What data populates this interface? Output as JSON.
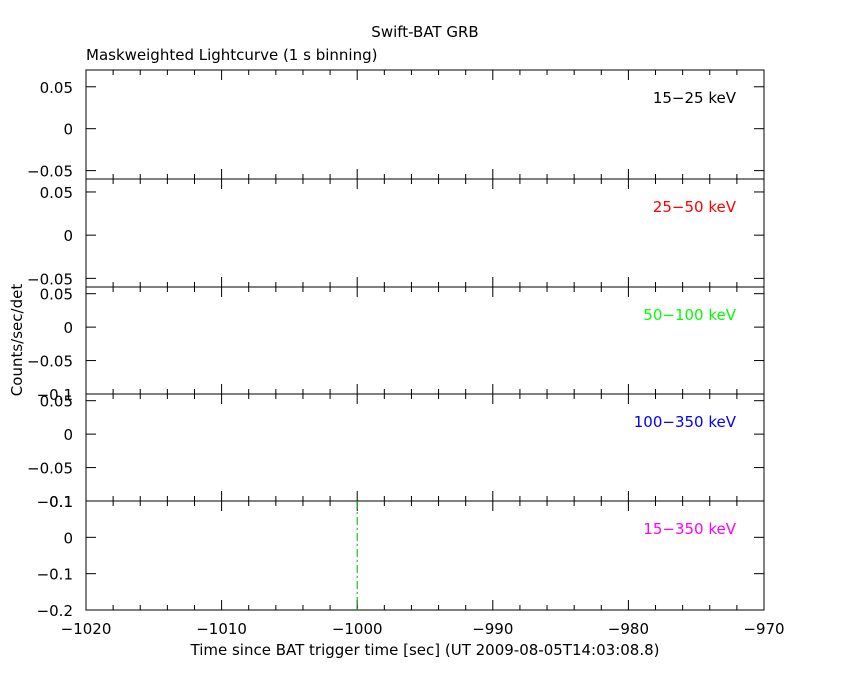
{
  "chart_data": {
    "type": "line",
    "title": "Swift-BAT GRB",
    "subtitle": "Maskweighted Lightcurve (1 s binning)",
    "xlabel": "Time since BAT trigger time [sec] (UT 2009-08-05T14:03:08.8)",
    "ylabel": "Counts/sec/det",
    "xlim": [
      -1020,
      -970
    ],
    "x_ticks": [
      -1020,
      -1010,
      -1000,
      -990,
      -980,
      -970
    ],
    "x_tick_labels": [
      "−1020",
      "−1010",
      "−1000",
      "−990",
      "−980",
      "−970"
    ],
    "grid": false,
    "panels": [
      {
        "label": "15−25 keV",
        "color": "#000000",
        "ylim": [
          -0.06,
          0.07
        ],
        "y_ticks": [
          -0.05,
          0,
          0.05
        ],
        "y_tick_labels": [
          "−0.05",
          "0",
          "0.05"
        ],
        "series": []
      },
      {
        "label": "25−50 keV",
        "color": "#ff0000",
        "ylim": [
          -0.06,
          0.065
        ],
        "y_ticks": [
          -0.05,
          0,
          0.05
        ],
        "y_tick_labels": [
          "−0.05",
          "0",
          "0.05"
        ],
        "series": []
      },
      {
        "label": "50−100 keV",
        "color": "#00ff00",
        "ylim": [
          -0.1,
          0.06
        ],
        "y_ticks": [
          -0.1,
          -0.05,
          0,
          0.05
        ],
        "y_tick_labels": [
          "−0.1",
          "−0.05",
          "0",
          "0.05"
        ],
        "series": []
      },
      {
        "label": "100−350 keV",
        "color": "#0000ff",
        "ylim": [
          -0.1,
          0.06
        ],
        "y_ticks": [
          -0.1,
          -0.05,
          0,
          0.05
        ],
        "y_tick_labels": [
          "−0.1",
          "−0.05",
          "0",
          "0.05"
        ],
        "series": []
      },
      {
        "label": "15−350 keV",
        "color": "#ff00ff",
        "ylim": [
          -0.2,
          0.1
        ],
        "y_ticks": [
          -0.2,
          -0.1,
          0,
          0.1
        ],
        "y_tick_labels": [
          "−0.2",
          "−0.1",
          "0",
          "0.1"
        ],
        "series": [],
        "vline": {
          "x": -1000,
          "color": "#00aa00",
          "style": "dash-dot"
        }
      }
    ]
  }
}
